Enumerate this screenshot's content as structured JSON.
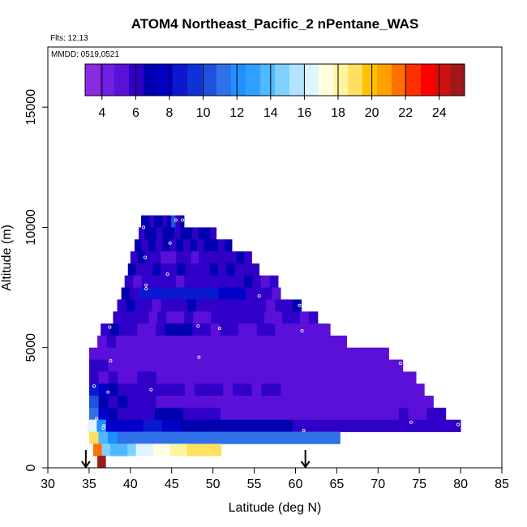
{
  "chart_data": {
    "type": "heatmap",
    "title": "ATOM4 Northeast_Pacific_2 nPentane_WAS",
    "subtitle_flights": "Flts: 12,13",
    "subtitle_dates": "MMDD: 0519,0521",
    "xlabel": "Latitude (deg N)",
    "ylabel": "Altitude (m)",
    "xlim": [
      30,
      85
    ],
    "ylim": [
      0,
      17500
    ],
    "xticks": [
      30,
      35,
      40,
      45,
      50,
      55,
      60,
      65,
      70,
      75,
      80,
      85
    ],
    "yticks": [
      0,
      5000,
      10000,
      15000
    ],
    "grid": false,
    "colorbar": {
      "range": [
        3,
        25.5
      ],
      "ticks": [
        4,
        6,
        8,
        10,
        12,
        14,
        16,
        18,
        20,
        22,
        24
      ],
      "colors": [
        "#8a2be2",
        "#7020e0",
        "#5a10d8",
        "#3000c8",
        "#0000b0",
        "#0000c8",
        "#0c18d0",
        "#1030d8",
        "#2050e0",
        "#3070e8",
        "#1e90ff",
        "#30a0ff",
        "#50b8ff",
        "#80d0ff",
        "#b0e4ff",
        "#e0f4ff",
        "#ffffe0",
        "#fff4a0",
        "#ffe060",
        "#ffc000",
        "#ffa000",
        "#ff7000",
        "#ff3000",
        "#ff0000",
        "#d01010",
        "#a01818"
      ]
    },
    "arrows_at_latitude": [
      34.6,
      61.2
    ],
    "rows": [
      {
        "alt": 10250,
        "lat0": 41.3,
        "lat1": 46.5,
        "values": [
          7,
          7,
          6,
          7,
          7,
          6,
          7,
          10,
          6,
          7
        ]
      },
      {
        "alt": 9750,
        "lat0": 41.0,
        "lat1": 50.4,
        "values": [
          6,
          7,
          7,
          6,
          7,
          7,
          6,
          7,
          7,
          6,
          7,
          7,
          6
        ]
      },
      {
        "alt": 9250,
        "lat0": 40.5,
        "lat1": 52.3,
        "values": [
          7,
          6,
          7,
          6,
          7,
          6,
          7,
          6,
          7,
          6,
          7,
          7,
          6,
          7
        ]
      },
      {
        "alt": 8750,
        "lat0": 40.0,
        "lat1": 54.7,
        "values": [
          6,
          7,
          6,
          6,
          5,
          5,
          6,
          6,
          5,
          6,
          6,
          6,
          6,
          6,
          7,
          6
        ]
      },
      {
        "alt": 8250,
        "lat0": 39.7,
        "lat1": 55.6,
        "values": [
          7,
          6,
          6,
          7,
          6,
          6,
          7,
          6,
          6,
          6,
          7,
          6,
          7,
          6,
          6,
          6
        ]
      },
      {
        "alt": 7750,
        "lat0": 39.3,
        "lat1": 57.9,
        "values": [
          6,
          5,
          6,
          6,
          6,
          6,
          5,
          6,
          6,
          6,
          6,
          6,
          6,
          6,
          7,
          6,
          5,
          6
        ]
      },
      {
        "alt": 7250,
        "lat0": 38.9,
        "lat1": 58.2,
        "values": [
          7,
          6,
          9,
          9,
          9,
          9,
          9,
          9,
          9,
          9,
          9,
          8,
          8,
          8,
          6,
          6,
          6,
          5
        ]
      },
      {
        "alt": 6750,
        "lat0": 38.4,
        "lat1": 60.7,
        "values": [
          6,
          7,
          6,
          6,
          5,
          6,
          6,
          6,
          7,
          6,
          6,
          6,
          6,
          6,
          6,
          6,
          6,
          5,
          6,
          6,
          7
        ]
      },
      {
        "alt": 6250,
        "lat0": 37.9,
        "lat1": 62.7,
        "values": [
          6,
          6,
          6,
          6,
          5,
          6,
          5,
          5,
          6,
          5,
          5,
          6,
          6,
          6,
          6,
          6,
          6,
          5,
          5,
          6,
          6,
          5,
          6
        ]
      },
      {
        "alt": 5750,
        "lat0": 36.4,
        "lat1": 64.2,
        "values": [
          6,
          7,
          6,
          6,
          5,
          5,
          6,
          7,
          7,
          7,
          6,
          6,
          5,
          6,
          6,
          5,
          5,
          6,
          6,
          5,
          5,
          5,
          5,
          5,
          5
        ]
      },
      {
        "alt": 5250,
        "lat0": 36.0,
        "lat1": 66.2,
        "values": [
          5,
          6,
          5,
          5,
          5,
          5,
          5,
          5,
          5,
          5,
          5,
          5,
          5,
          5,
          5,
          5,
          5,
          5,
          5,
          5,
          5,
          5,
          5,
          5,
          5,
          5,
          5
        ]
      },
      {
        "alt": 4750,
        "lat0": 35.0,
        "lat1": 71.3,
        "values": [
          5,
          5,
          5,
          5,
          5,
          5,
          5,
          5,
          5,
          5,
          5,
          5,
          5,
          5,
          5,
          5,
          5,
          5,
          5,
          5,
          5,
          5,
          5,
          5,
          5,
          5,
          5,
          5,
          5,
          5,
          5,
          5
        ]
      },
      {
        "alt": 4250,
        "lat0": 35.0,
        "lat1": 73.0,
        "values": [
          6,
          6,
          5,
          5,
          5,
          5,
          5,
          5,
          5,
          5,
          5,
          5,
          5,
          5,
          5,
          5,
          5,
          5,
          5,
          5,
          5,
          5,
          5,
          5,
          5,
          5,
          5,
          5,
          5,
          5,
          5,
          5,
          5
        ]
      },
      {
        "alt": 3750,
        "lat0": 35.0,
        "lat1": 74.6,
        "values": [
          6,
          5,
          6,
          5,
          5,
          6,
          6,
          5,
          5,
          5,
          5,
          5,
          5,
          5,
          5,
          5,
          5,
          5,
          5,
          5,
          5,
          5,
          5,
          5,
          5,
          5,
          5,
          5,
          5,
          5,
          5,
          5,
          5,
          5
        ]
      },
      {
        "alt": 3250,
        "lat0": 35.0,
        "lat1": 75.6,
        "values": [
          9,
          8,
          7,
          6,
          6,
          6,
          6,
          6,
          6,
          6,
          5,
          6,
          6,
          6,
          5,
          6,
          6,
          5,
          6,
          6,
          5,
          5,
          5,
          5,
          5,
          5,
          5,
          5,
          5,
          5,
          5,
          5,
          5,
          5,
          5
        ]
      },
      {
        "alt": 2750,
        "lat0": 35.0,
        "lat1": 76.7,
        "values": [
          10,
          7,
          6,
          7,
          6,
          6,
          6,
          5,
          5,
          5,
          5,
          5,
          5,
          5,
          5,
          5,
          5,
          5,
          5,
          5,
          5,
          5,
          5,
          5,
          5,
          5,
          5,
          5,
          5,
          5,
          5,
          5,
          5,
          5,
          5,
          5
        ]
      },
      {
        "alt": 2250,
        "lat0": 35.0,
        "lat1": 78.2,
        "values": [
          11,
          8,
          7,
          6,
          6,
          6,
          6,
          7,
          7,
          7,
          6,
          6,
          6,
          6,
          5,
          5,
          5,
          5,
          5,
          5,
          5,
          5,
          5,
          5,
          5,
          5,
          5,
          5,
          5,
          5,
          5,
          5,
          5,
          6,
          5,
          5,
          6,
          6
        ]
      },
      {
        "alt": 1750,
        "lat0": 34.8,
        "lat1": 80.0,
        "values": [
          16,
          12,
          8,
          8,
          8,
          8,
          9,
          9,
          8,
          8,
          7,
          7,
          7,
          7,
          7,
          7,
          7,
          7,
          7,
          7,
          7,
          7,
          6,
          6,
          6,
          6,
          6,
          6,
          6,
          6,
          6,
          6,
          6,
          6,
          6,
          6,
          6,
          6,
          6,
          6
        ]
      },
      {
        "alt": 1250,
        "lat0": 35.0,
        "lat1": 65.4,
        "values": [
          19,
          14,
          12,
          11,
          11,
          11,
          11,
          11,
          11,
          11,
          11,
          11,
          11,
          11,
          11,
          11,
          11,
          11,
          11,
          11,
          11,
          11,
          11,
          11,
          11,
          11,
          11
        ]
      },
      {
        "alt": 750,
        "lat0": 35.5,
        "lat1": 51.0,
        "values": [
          22,
          15,
          14,
          14,
          15,
          16,
          16,
          17,
          17,
          18,
          18,
          19,
          19,
          19,
          19
        ]
      },
      {
        "alt": 250,
        "lat0": 36.0,
        "lat1": 37.0,
        "values": [
          25,
          25
        ]
      }
    ],
    "sample_points": [
      [
        41.6,
        10000
      ],
      [
        45.5,
        10300
      ],
      [
        46.3,
        10300
      ],
      [
        44.8,
        9350
      ],
      [
        41.8,
        8750
      ],
      [
        44.5,
        8050
      ],
      [
        41.9,
        7600
      ],
      [
        41.9,
        7450
      ],
      [
        55.6,
        7150
      ],
      [
        60.5,
        6750
      ],
      [
        37.5,
        5850
      ],
      [
        48.2,
        5900
      ],
      [
        50.8,
        5800
      ],
      [
        60.8,
        5700
      ],
      [
        48.3,
        4600
      ],
      [
        37.6,
        4450
      ],
      [
        72.7,
        4350
      ],
      [
        42.5,
        3250
      ],
      [
        35.6,
        3400
      ],
      [
        37.3,
        3150
      ],
      [
        35.9,
        2050
      ],
      [
        36.8,
        1750
      ],
      [
        74.0,
        1900
      ],
      [
        79.7,
        1800
      ],
      [
        36.7,
        1650
      ],
      [
        61.0,
        1550
      ]
    ]
  }
}
